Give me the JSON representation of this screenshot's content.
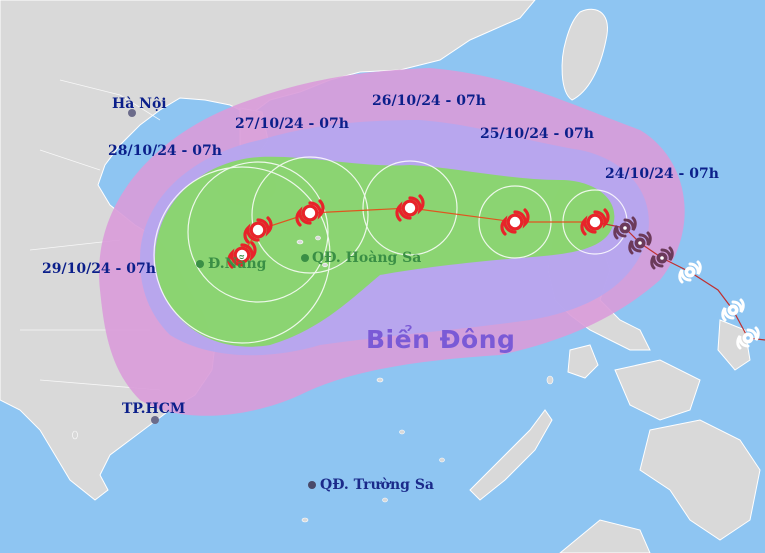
{
  "map": {
    "sea_name": "Biển Đông",
    "places": [
      {
        "id": "hanoi",
        "name": "Hà Nội"
      },
      {
        "id": "danang",
        "name": "Đ.Nẵng"
      },
      {
        "id": "tphcm",
        "name": "TP.HCM"
      },
      {
        "id": "hoangsa",
        "name": "QĐ. Hoàng Sa"
      },
      {
        "id": "truongsa",
        "name": "QĐ. Trường Sa"
      }
    ],
    "forecast_times": [
      "24/10/24 - 07h",
      "25/10/24 - 07h",
      "26/10/24 - 07h",
      "27/10/24 - 07h",
      "28/10/24 - 07h",
      "29/10/24 - 07h"
    ],
    "colors": {
      "sea": "#8ec5f2",
      "land": "#d9d9d9",
      "uncertainty_cone": "#d99bd9",
      "strong_wind_zone": "#b6a6ee",
      "danger_zone": "#88d66a",
      "track_line": "#e0551f",
      "storm_symbol": "#e8232a",
      "past_track": "#c03030"
    },
    "icons": [
      "storm-forecast-icon",
      "storm-past-icon",
      "city-marker-icon"
    ]
  }
}
